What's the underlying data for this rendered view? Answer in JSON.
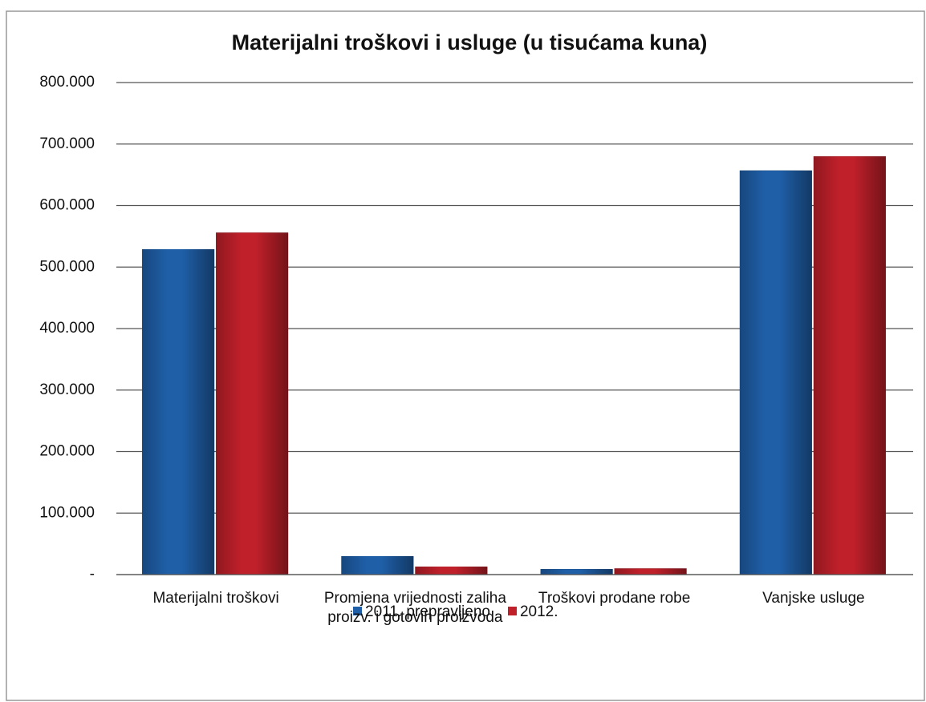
{
  "chart_data": {
    "type": "bar",
    "title": "Materijalni troškovi i usluge (u tisućama kuna)",
    "categories": [
      "Materijalni troškovi",
      "Promjena vrijednosti zaliha proizv. i gotovih proizvoda",
      "Troškovi prodane robe",
      "Vanjske usluge"
    ],
    "series": [
      {
        "name": "2011. prepravljeno",
        "color": "#1f5fa8",
        "values": [
          529000,
          30000,
          9000,
          657000
        ]
      },
      {
        "name": "2012.",
        "color": "#c0202a",
        "values": [
          556000,
          13000,
          10000,
          680000
        ]
      }
    ],
    "ylim": [
      0,
      800000
    ],
    "yticks": [
      {
        "value": 0,
        "label": "-"
      },
      {
        "value": 100000,
        "label": "100.000"
      },
      {
        "value": 200000,
        "label": "200.000"
      },
      {
        "value": 300000,
        "label": "300.000"
      },
      {
        "value": 400000,
        "label": "400.000"
      },
      {
        "value": 500000,
        "label": "500.000"
      },
      {
        "value": 600000,
        "label": "600.000"
      },
      {
        "value": 700000,
        "label": "700.000"
      },
      {
        "value": 800000,
        "label": "800.000"
      }
    ],
    "grid": true,
    "legend": "bottom"
  }
}
